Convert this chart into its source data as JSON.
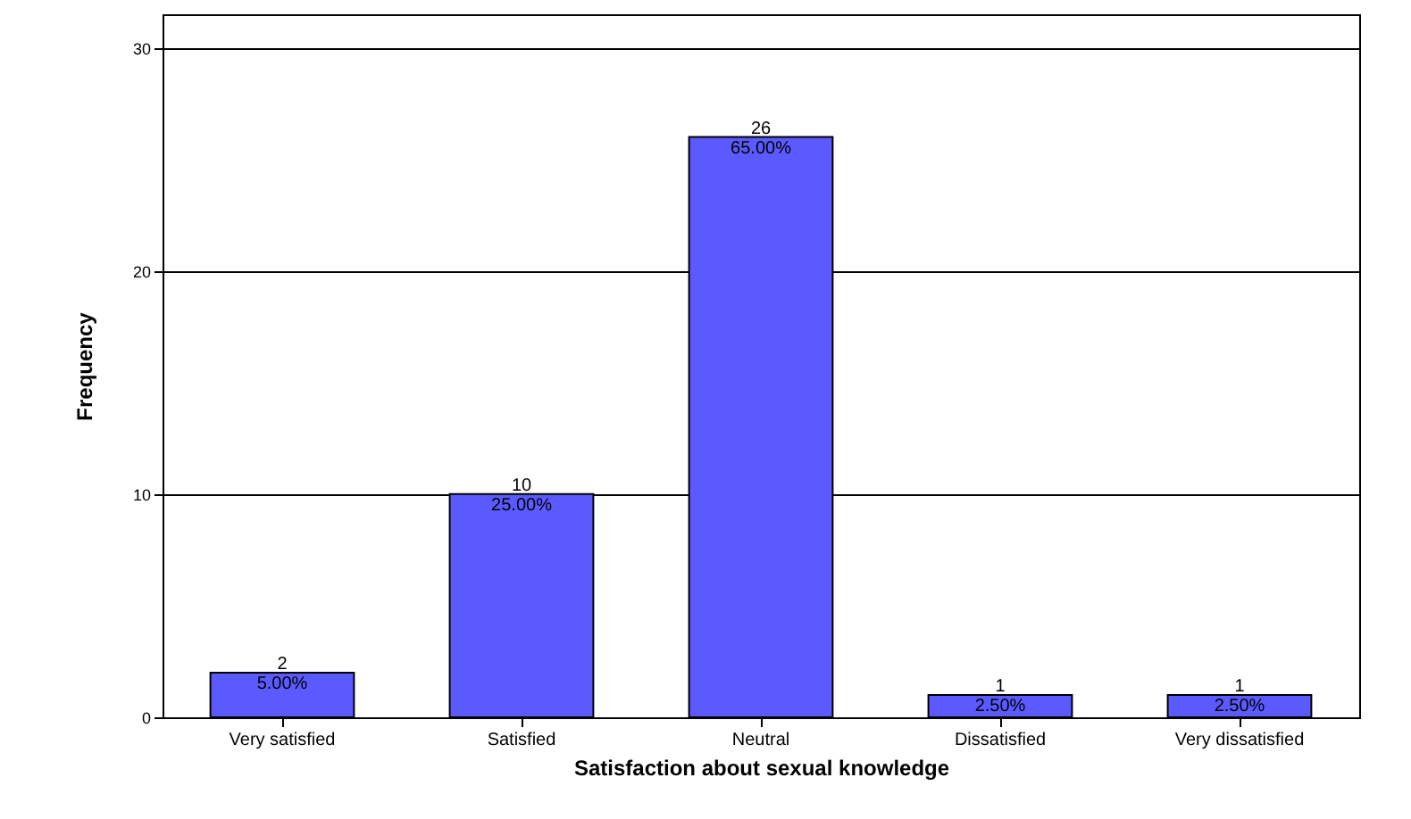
{
  "chart_data": {
    "type": "bar",
    "xlabel": "Satisfaction about sexual knowledge",
    "ylabel": "Frequency",
    "categories": [
      "Very satisfied",
      "Satisfied",
      "Neutral",
      "Dissatisfied",
      "Very dissatisfied"
    ],
    "values": [
      2,
      10,
      26,
      1,
      1
    ],
    "color": "#5a5aff",
    "value_labels": [
      "2\n5.00%",
      "10\n25.00%",
      "26\n65.00%",
      "1\n2.50%",
      "1\n2.50%"
    ],
    "ylim": [
      0,
      31.5
    ],
    "yticks": [
      0,
      10,
      20,
      30
    ],
    "grid": "y"
  }
}
